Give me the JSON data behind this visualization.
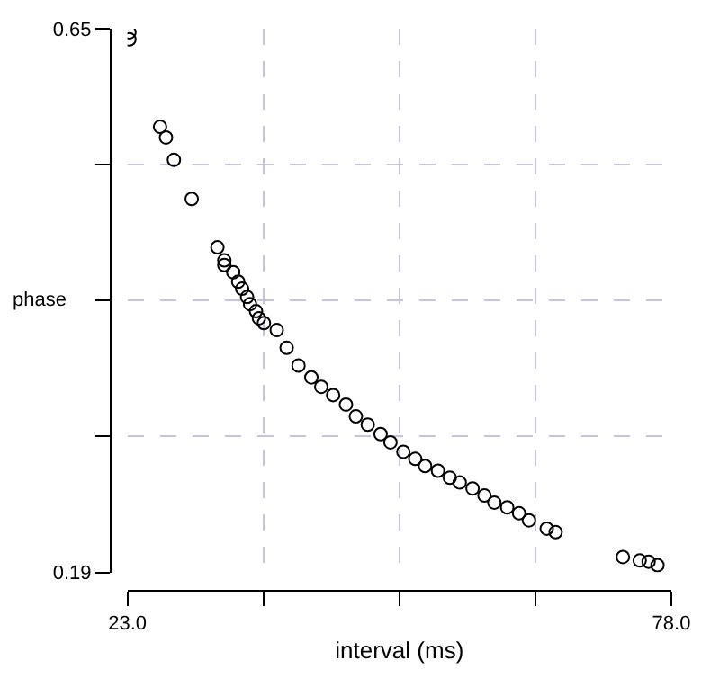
{
  "chart_data": {
    "type": "scatter",
    "xlabel": "interval (ms)",
    "ylabel": "phase",
    "x": [
      23.2,
      23.2,
      26.3,
      26.9,
      27.7,
      29.5,
      32.1,
      32.8,
      32.8,
      33.7,
      34.2,
      34.6,
      35.1,
      35.4,
      36.0,
      36.3,
      36.8,
      38.1,
      39.1,
      40.3,
      41.6,
      42.6,
      43.8,
      45.1,
      46.1,
      47.3,
      48.6,
      49.6,
      50.9,
      52.1,
      53.1,
      54.4,
      55.6,
      56.6,
      57.9,
      59.1,
      60.1,
      61.4,
      62.6,
      63.6,
      65.4,
      66.3,
      73.1,
      74.8,
      75.7,
      76.6
    ],
    "series": [
      {
        "color": "#000000",
        "values": [
          0.647,
          0.641,
          0.567,
          0.558,
          0.539,
          0.506,
          0.465,
          0.454,
          0.45,
          0.444,
          0.436,
          0.43,
          0.423,
          0.417,
          0.411,
          0.405,
          0.401,
          0.395,
          0.38,
          0.365,
          0.355,
          0.347,
          0.34,
          0.332,
          0.322,
          0.315,
          0.307,
          0.3,
          0.292,
          0.286,
          0.28,
          0.276,
          0.27,
          0.266,
          0.261,
          0.255,
          0.249,
          0.245,
          0.24,
          0.234,
          0.227,
          0.224,
          0.203,
          0.2,
          0.199,
          0.196
        ]
      }
    ],
    "xlim": [
      23.0,
      78.0
    ],
    "ylim": [
      0.19,
      0.65
    ],
    "xticks": [
      {
        "value": 23.0,
        "label": "23.0"
      },
      {
        "value": 36.75,
        "label": null
      },
      {
        "value": 50.5,
        "label": null
      },
      {
        "value": 64.25,
        "label": null
      },
      {
        "value": 78.0,
        "label": "78.0"
      }
    ],
    "yticks": [
      {
        "value": 0.19,
        "label": "0.19"
      },
      {
        "value": 0.305,
        "label": null
      },
      {
        "value": 0.42,
        "label": null
      },
      {
        "value": 0.535,
        "label": null
      },
      {
        "value": 0.65,
        "label": "0.65"
      }
    ],
    "grid": true,
    "marker": "circle"
  }
}
